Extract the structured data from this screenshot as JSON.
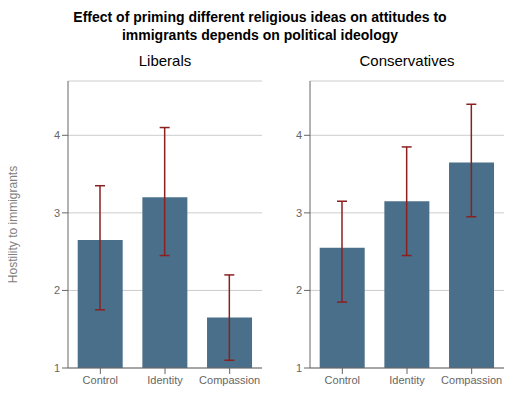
{
  "title": "Effect of priming different religious ideas on attitudes to\nimmigrants depends on political ideology",
  "chart_data": [
    {
      "type": "bar",
      "title": "Liberals",
      "categories": [
        "Control",
        "Identity",
        "Compassion"
      ],
      "values": [
        2.65,
        3.2,
        1.65
      ],
      "error_bars": {
        "lower": [
          1.75,
          2.45,
          1.1
        ],
        "upper": [
          3.35,
          4.1,
          2.2
        ],
        "color": "#8b2020"
      },
      "color": "#4a6f8a",
      "ylabel": "Hostility to immigrants",
      "ylim": [
        1,
        4.7
      ],
      "yticks": [
        1,
        2,
        3,
        4
      ],
      "grid": true
    },
    {
      "type": "bar",
      "title": "Conservatives",
      "categories": [
        "Control",
        "Identity",
        "Compassion"
      ],
      "values": [
        2.55,
        3.15,
        3.65
      ],
      "error_bars": {
        "lower": [
          1.85,
          2.45,
          2.95
        ],
        "upper": [
          3.15,
          3.85,
          4.4
        ],
        "color": "#8b2020"
      },
      "color": "#4a6f8a",
      "ylim": [
        1,
        4.7
      ],
      "yticks": [
        1,
        2,
        3,
        4
      ],
      "grid": true
    }
  ]
}
